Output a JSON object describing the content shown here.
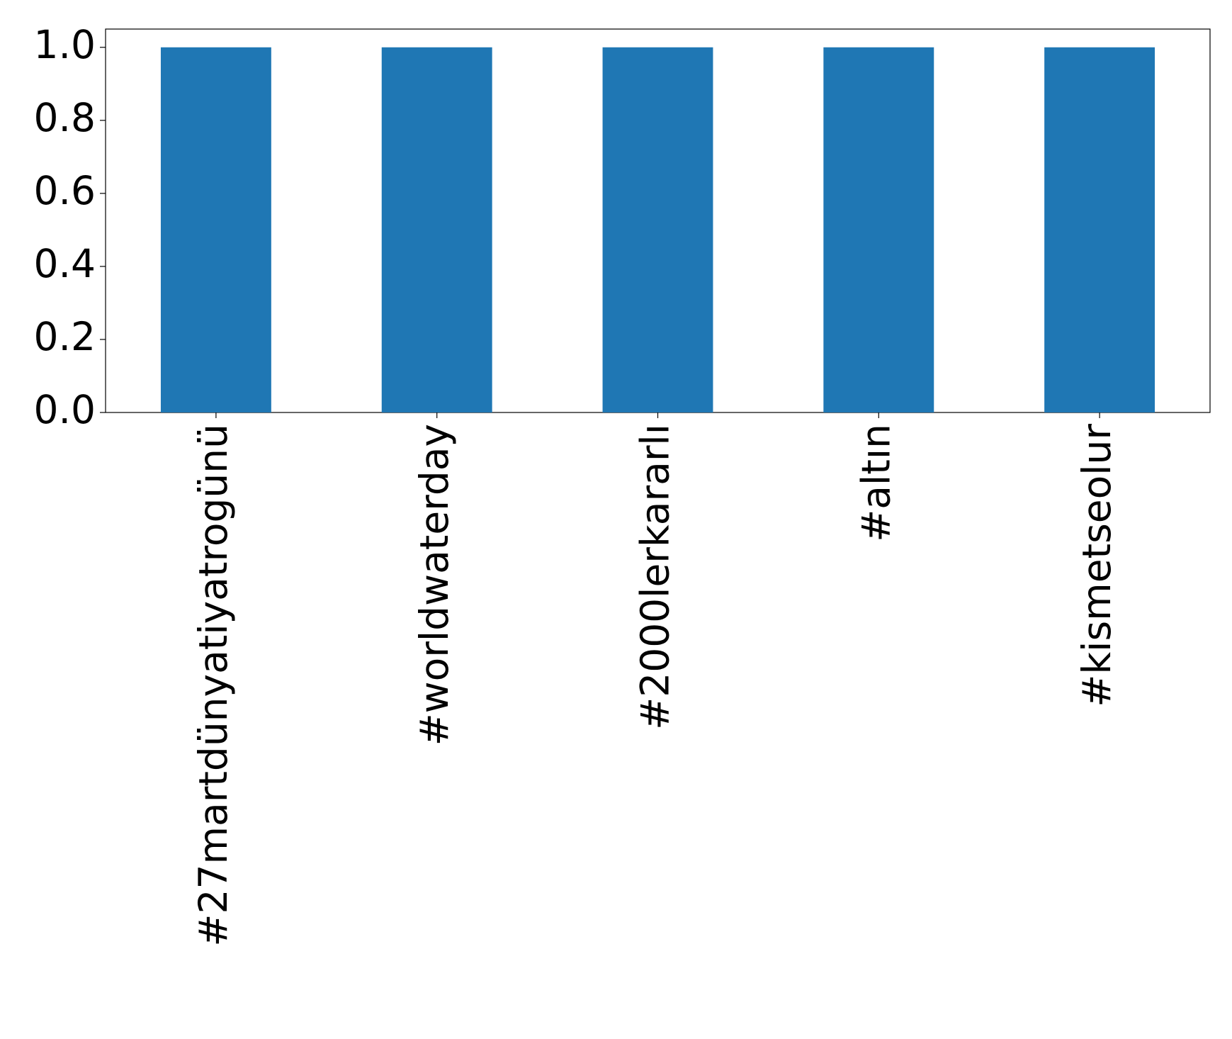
{
  "chart_data": {
    "type": "bar",
    "categories": [
      "#27martdünyatiyatrogünü",
      "#worldwaterday",
      "#2000lerkararlı",
      "#altın",
      "#kismetseolur"
    ],
    "values": [
      1,
      1,
      1,
      1,
      1
    ],
    "color": "#1f77b4",
    "ylim": [
      0,
      1.05
    ],
    "yticks": [
      {
        "value": 0,
        "label": "0.0"
      },
      0.2,
      0.4,
      0.6,
      0.8,
      {
        "value": 1,
        "label": "1.0"
      }
    ],
    "grid": false
  }
}
